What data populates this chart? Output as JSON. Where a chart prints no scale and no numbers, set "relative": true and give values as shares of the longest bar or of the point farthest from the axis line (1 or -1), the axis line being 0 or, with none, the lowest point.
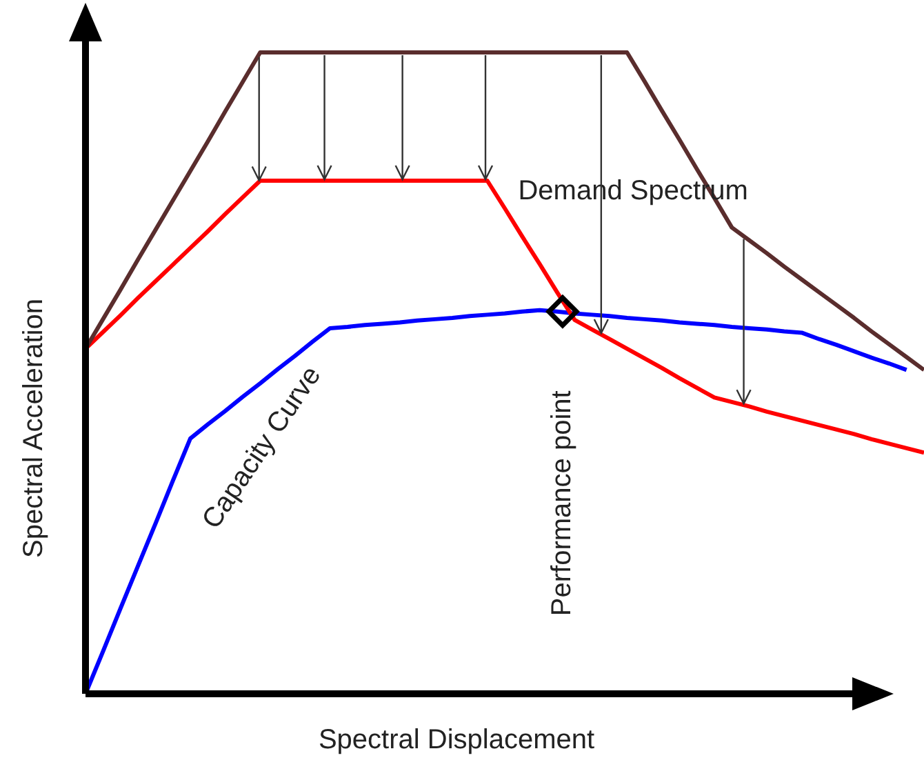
{
  "chart_data": {
    "type": "line",
    "relative": true,
    "xlabel": "Spectral Displacement",
    "ylabel": "Spectral Acceleration",
    "marker": "none",
    "annotations": [
      "Demand Spectrum",
      "Capacity Curve",
      {
        "text": "Performance point",
        "y": 0.596
      }
    ],
    "categories": [
      null,
      null,
      null,
      null,
      null,
      null,
      null,
      null,
      null,
      null,
      null,
      null,
      null,
      null,
      null,
      null,
      null,
      null,
      null,
      null,
      null,
      null,
      null,
      null,
      null,
      null,
      null,
      null,
      null,
      null,
      null,
      null,
      null,
      null,
      null,
      null,
      null,
      null,
      null,
      null,
      null,
      null,
      null,
      null,
      null,
      null,
      null,
      null,
      null
    ],
    "series": [
      {
        "color": "#5a2d2d",
        "values": [
          0.538,
          0.584,
          0.63,
          0.677,
          0.723,
          0.769,
          0.815,
          0.861,
          0.908,
          0.954,
          1,
          1,
          1,
          1,
          1,
          1,
          1,
          1,
          1,
          1,
          1,
          1,
          1,
          1,
          1,
          1,
          1,
          1,
          1,
          1,
          1,
          1,
          0.955,
          0.909,
          0.864,
          0.818,
          0.773,
          0.727,
          0.707,
          0.687,
          0.666,
          0.646,
          0.626,
          0.606,
          0.586,
          0.565,
          0.545,
          0.525,
          0.505
        ]
      },
      {
        "color": "#ff0000",
        "values": [
          0.538,
          0.564,
          0.59,
          0.617,
          0.643,
          0.669,
          0.695,
          0.721,
          0.748,
          0.774,
          0.8,
          0.8,
          0.8,
          0.8,
          0.8,
          0.8,
          0.8,
          0.8,
          0.8,
          0.8,
          0.8,
          0.8,
          0.8,
          0.8,
          0.757,
          0.713,
          0.67,
          0.626,
          0.583,
          0.568,
          0.553,
          0.538,
          0.523,
          0.508,
          0.492,
          0.477,
          0.462,
          0.455,
          0.448,
          0.44,
          0.433,
          0.426,
          0.419,
          0.412,
          0.405,
          0.397,
          0.39,
          0.383,
          0.376
        ]
      },
      {
        "color": "#0000ff",
        "values": [
          0,
          0.066,
          0.133,
          0.199,
          0.265,
          0.332,
          0.398,
          0.42,
          0.441,
          0.463,
          0.484,
          0.506,
          0.527,
          0.549,
          0.57,
          0.572,
          0.575,
          0.577,
          0.579,
          0.582,
          0.584,
          0.586,
          0.589,
          0.591,
          0.593,
          0.596,
          0.598,
          0.596,
          0.593,
          0.591,
          0.589,
          0.586,
          0.584,
          0.582,
          0.579,
          0.577,
          0.575,
          0.572,
          0.57,
          0.568,
          0.565,
          0.563,
          0.553,
          0.544,
          0.534,
          0.524,
          0.515,
          0.505,
          null
        ]
      }
    ]
  }
}
